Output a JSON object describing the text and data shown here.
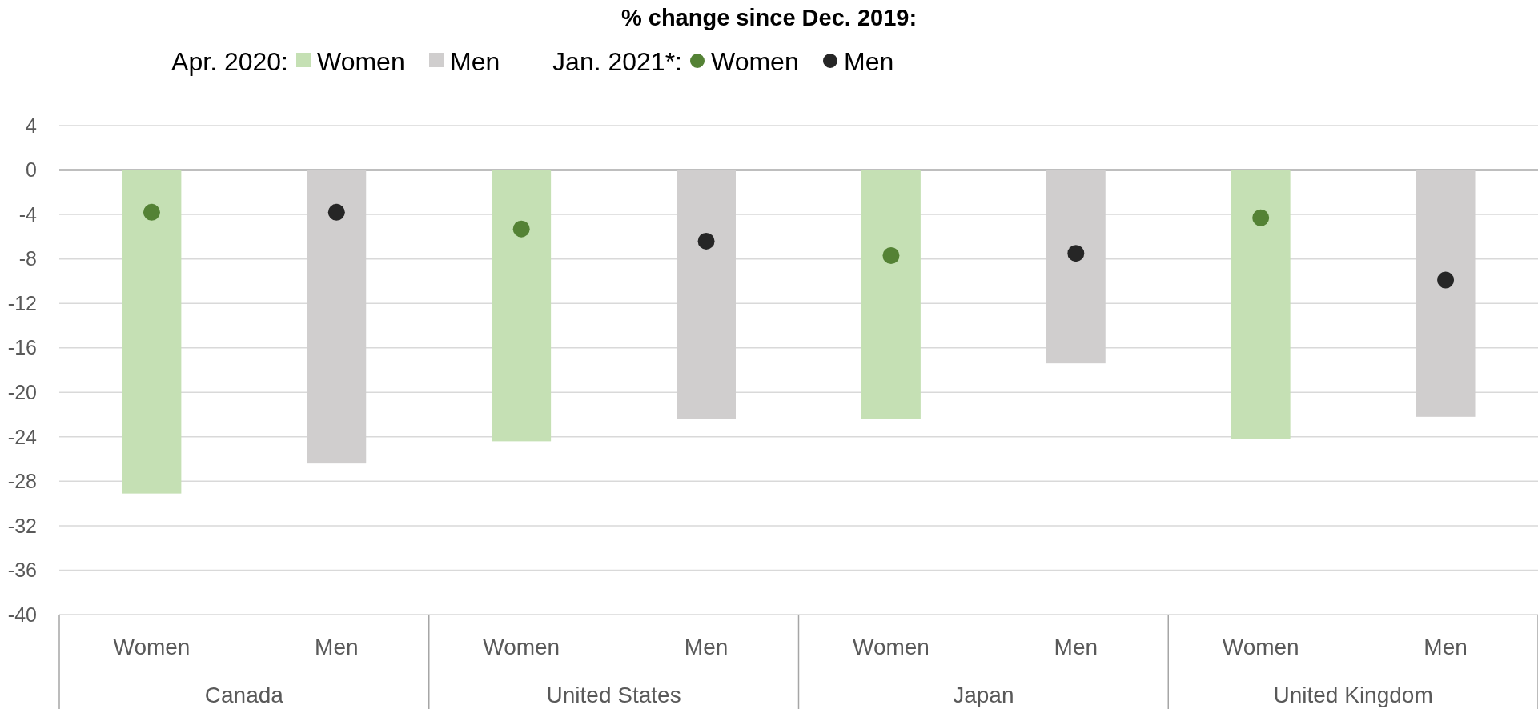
{
  "chart_data": {
    "type": "bar",
    "title": "% change since Dec. 2019:",
    "categories": [
      "Women",
      "Men",
      "Women",
      "Men",
      "Women",
      "Men",
      "Women",
      "Men"
    ],
    "series": [
      {
        "name": "Women",
        "type": "bar",
        "color": "#c5e0b4",
        "values": [
          -29.1,
          null,
          -24.4,
          null,
          -22.4,
          null,
          -24.2,
          null
        ]
      },
      {
        "name": "Men",
        "type": "bar",
        "color": "#d0cece",
        "values": [
          null,
          -26.4,
          null,
          -22.4,
          null,
          -17.4,
          null,
          -22.2
        ]
      },
      {
        "name": "Women",
        "type": "scatter",
        "color": "#548235",
        "values": [
          -3.8,
          null,
          -5.3,
          null,
          -7.7,
          null,
          -4.3,
          null
        ]
      },
      {
        "name": "Men",
        "type": "scatter",
        "color": "#262626",
        "values": [
          null,
          -3.8,
          null,
          -6.4,
          null,
          -7.5,
          null,
          -9.9
        ]
      }
    ],
    "annotations": [
      "Apr. 2020:",
      "Jan. 2021*:",
      "Canada",
      "United States",
      "Japan",
      "United Kingdom"
    ],
    "ylim": [
      -40,
      4
    ],
    "yticks": [
      4,
      0,
      -4,
      -8,
      -12,
      -16,
      -20,
      -24,
      -28,
      -32,
      -36,
      -40
    ],
    "grid": "y",
    "legend": "top",
    "marker": "circle"
  }
}
